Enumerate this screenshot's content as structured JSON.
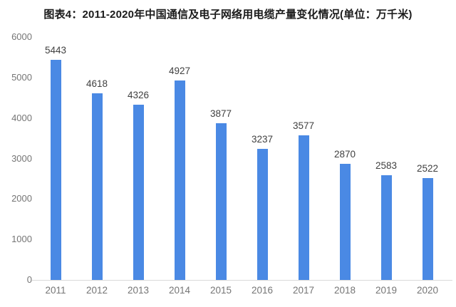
{
  "title": "图表4：2011-2020年中国通信及电子网络用电缆产量变化情况(单位：万千米)",
  "colors": {
    "bar": "#4a89e4",
    "axis_line": "#d9d9d9",
    "tick_label": "#757575",
    "data_label": "#404040",
    "title": "#1a1a1a",
    "background": "#ffffff"
  },
  "chart_data": {
    "type": "bar",
    "title": "图表4：2011-2020年中国通信及电子网络用电缆产量变化情况(单位：万千米)",
    "unit": "万千米",
    "categories": [
      "2011",
      "2012",
      "2013",
      "2014",
      "2015",
      "2016",
      "2017",
      "2018",
      "2019",
      "2020"
    ],
    "values": [
      5443,
      4618,
      4326,
      4927,
      3877,
      3237,
      3577,
      2870,
      2583,
      2522
    ],
    "data_labels": [
      "5443",
      "4618",
      "4326",
      "4927",
      "3877",
      "3237",
      "3577",
      "2870",
      "2583",
      "2522"
    ],
    "xlabel": "",
    "ylabel": "",
    "ylim": [
      0,
      6000
    ],
    "yticks": [
      0,
      1000,
      2000,
      3000,
      4000,
      5000,
      6000
    ],
    "ytick_labels": [
      "0",
      "1000",
      "2000",
      "3000",
      "4000",
      "5000",
      "6000"
    ],
    "grid": false,
    "legend_position": "none",
    "show_data_labels": true
  }
}
